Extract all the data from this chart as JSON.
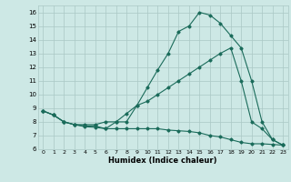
{
  "xlabel": "Humidex (Indice chaleur)",
  "xlim": [
    -0.5,
    23.5
  ],
  "ylim": [
    6,
    16.5
  ],
  "xticks": [
    0,
    1,
    2,
    3,
    4,
    5,
    6,
    7,
    8,
    9,
    10,
    11,
    12,
    13,
    14,
    15,
    16,
    17,
    18,
    19,
    20,
    21,
    22,
    23
  ],
  "yticks": [
    6,
    7,
    8,
    9,
    10,
    11,
    12,
    13,
    14,
    15,
    16
  ],
  "bg_color": "#cde8e5",
  "grid_color": "#aac8c4",
  "line_color": "#1a6b5a",
  "line1_x": [
    0,
    1,
    2,
    3,
    4,
    5,
    6,
    7,
    8,
    9,
    10,
    11,
    12,
    13,
    14,
    15,
    16,
    17,
    18,
    19,
    20,
    21,
    22,
    23
  ],
  "line1_y": [
    8.8,
    8.5,
    8.0,
    7.8,
    7.7,
    7.7,
    7.5,
    8.0,
    8.0,
    9.2,
    10.5,
    11.8,
    13.0,
    14.6,
    15.0,
    16.0,
    15.8,
    15.2,
    14.3,
    13.4,
    11.0,
    8.0,
    6.7,
    6.3
  ],
  "line2_x": [
    0,
    1,
    2,
    3,
    4,
    5,
    6,
    7,
    8,
    9,
    10,
    11,
    12,
    13,
    14,
    15,
    16,
    17,
    18,
    19,
    20,
    21,
    22,
    23
  ],
  "line2_y": [
    8.8,
    8.5,
    8.0,
    7.8,
    7.65,
    7.6,
    7.5,
    7.5,
    7.5,
    7.5,
    7.5,
    7.5,
    7.4,
    7.35,
    7.3,
    7.2,
    7.0,
    6.9,
    6.7,
    6.5,
    6.4,
    6.4,
    6.35,
    6.3
  ],
  "line3_x": [
    0,
    1,
    2,
    3,
    4,
    5,
    6,
    7,
    8,
    9,
    10,
    11,
    12,
    13,
    14,
    15,
    16,
    17,
    18,
    19,
    20,
    21,
    22,
    23
  ],
  "line3_y": [
    8.8,
    8.5,
    8.0,
    7.8,
    7.8,
    7.8,
    8.0,
    8.0,
    8.6,
    9.2,
    9.5,
    10.0,
    10.5,
    11.0,
    11.5,
    12.0,
    12.5,
    13.0,
    13.4,
    11.0,
    8.0,
    7.5,
    6.7,
    6.3
  ]
}
